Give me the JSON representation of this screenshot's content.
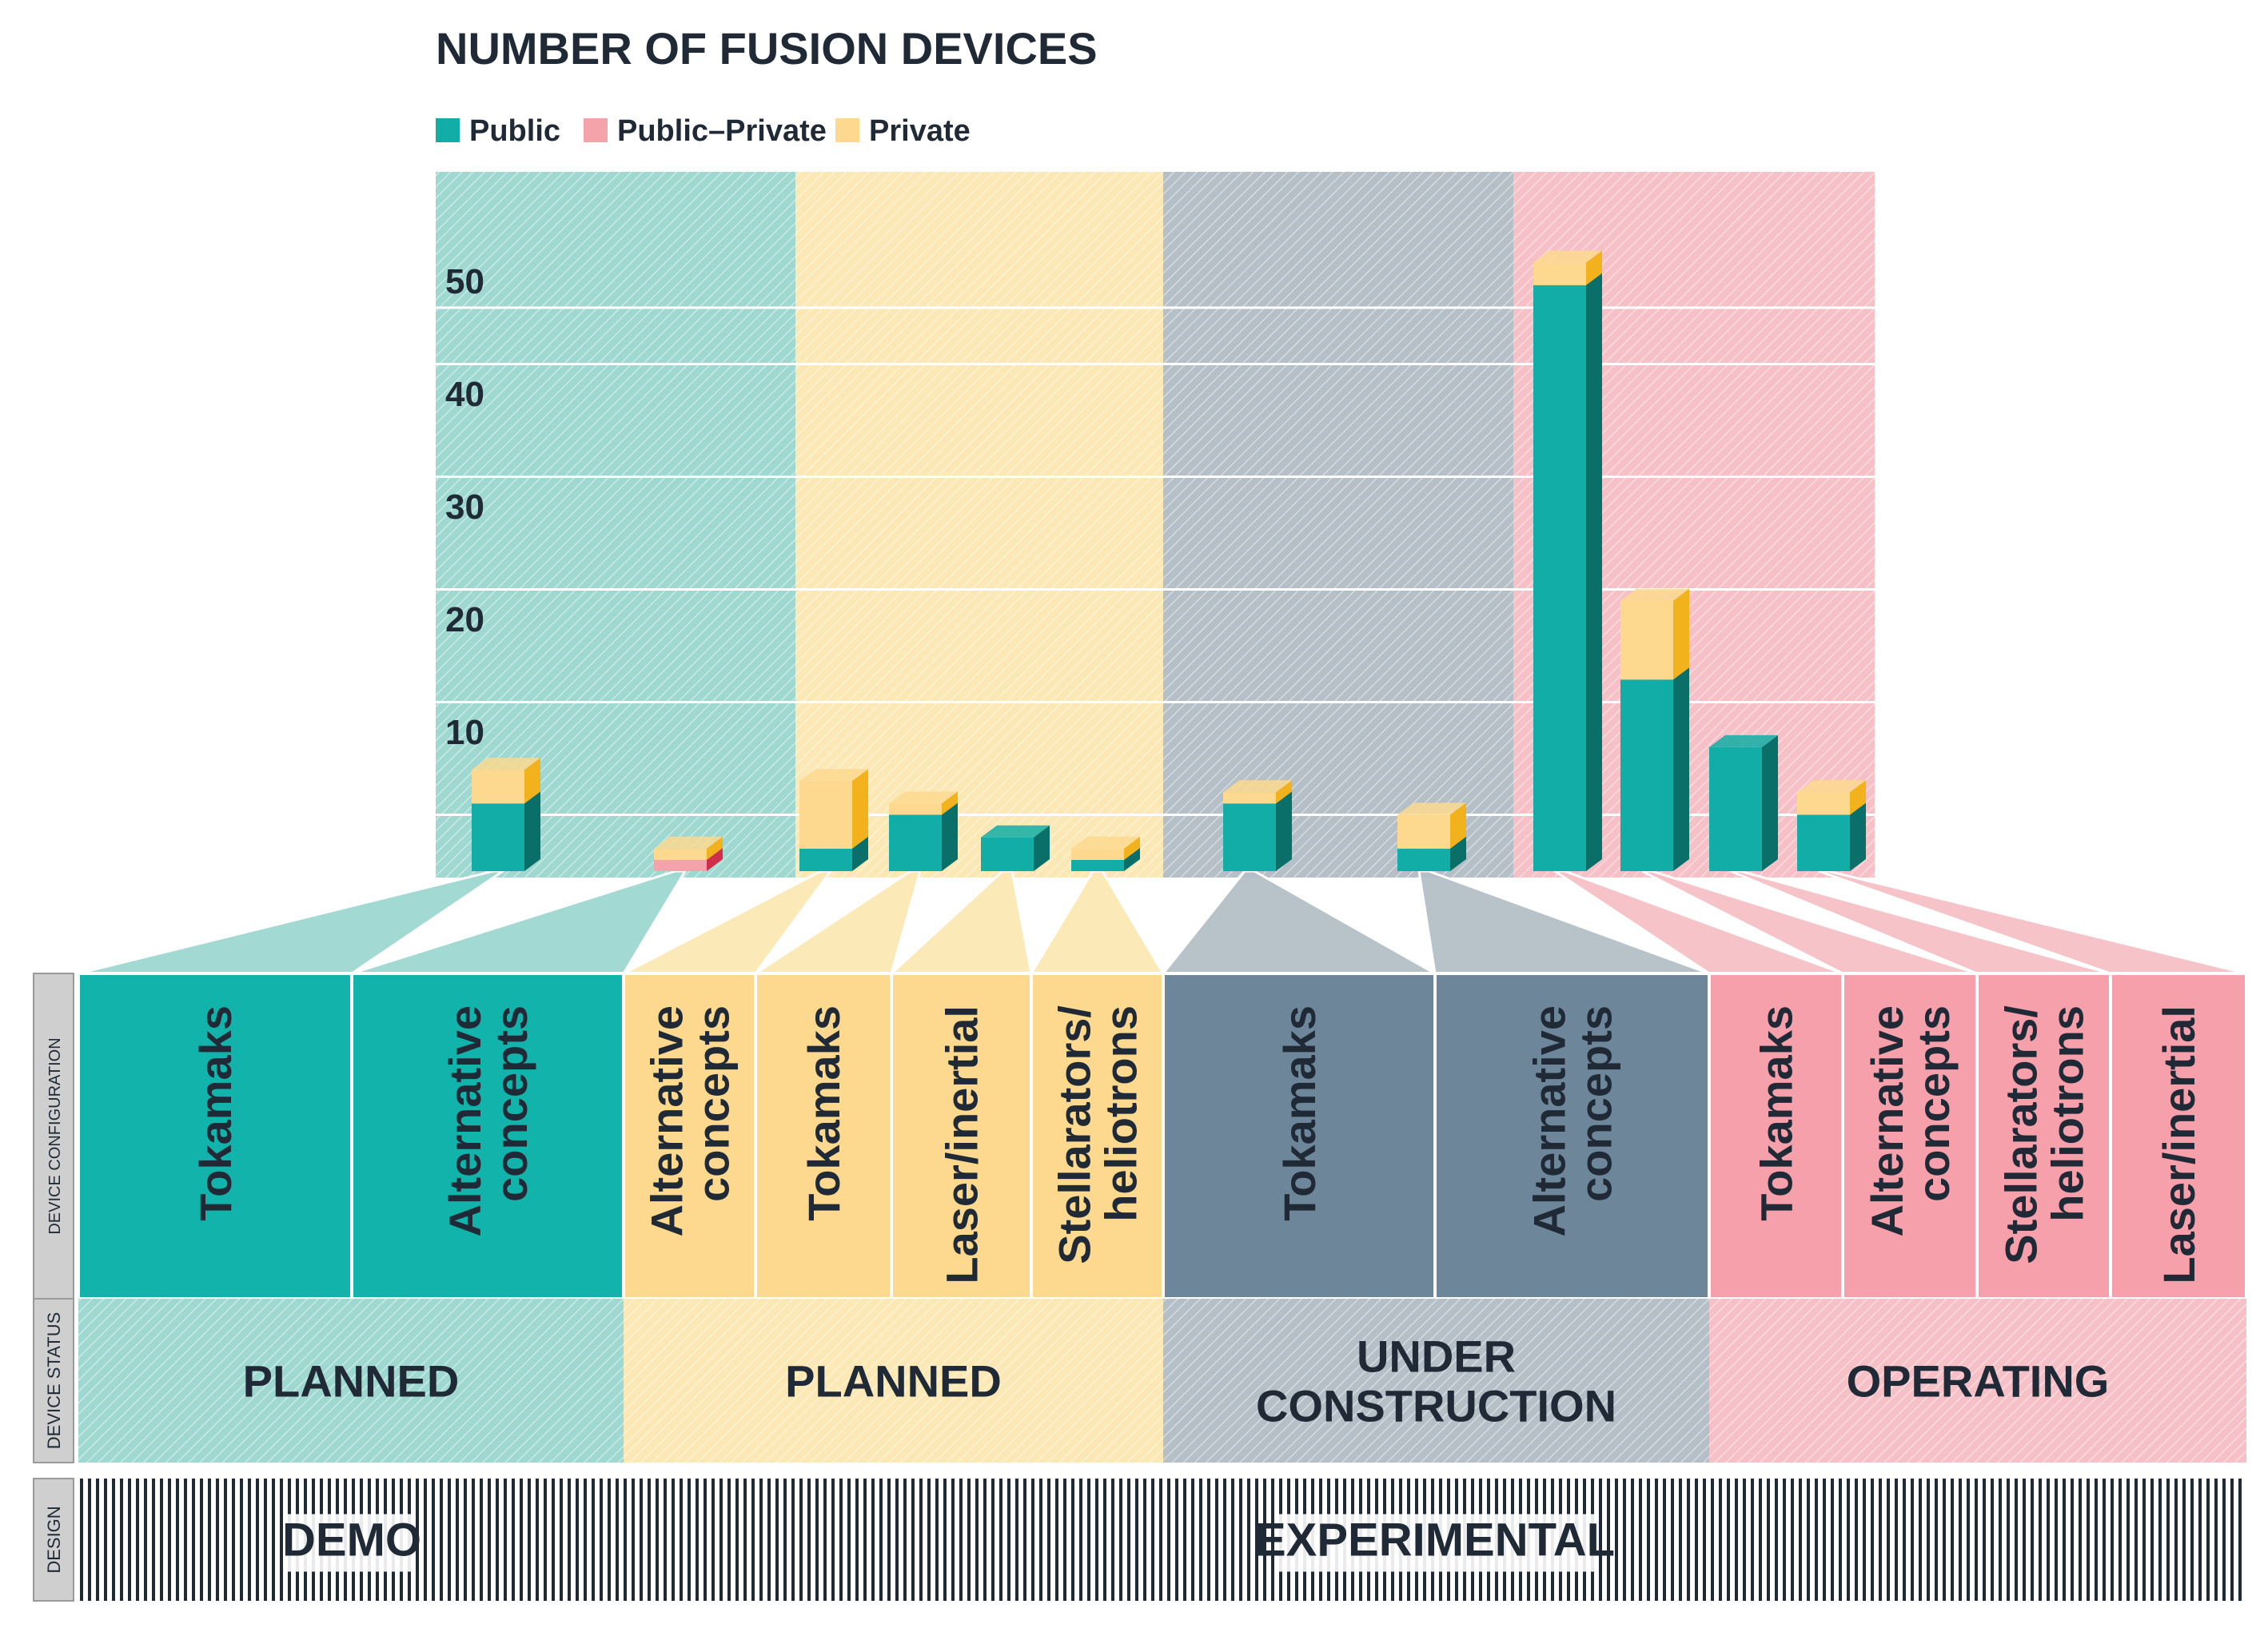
{
  "colors": {
    "public": "#12ada6",
    "public_dark": "#0a6f68",
    "public_private": "#f4a3ab",
    "public_private_dark": "#cf2f4b",
    "private": "#fcd98e",
    "private_dark": "#f2b21e",
    "group_teal": "#9fd8d1",
    "group_yellow": "#fbe8b5",
    "group_slate": "#b5bfc7",
    "group_pink": "#f6c0c7",
    "config_teal": "#12b3ab",
    "config_yellow": "#fcd98e",
    "config_slate": "#6e8699",
    "config_pink": "#f5a0aa",
    "row_label_bg": "#cfcfcf",
    "text_dark": "#1f2a36"
  },
  "row_labels": {
    "config": "DEVICE CONFIGURATION",
    "status": "DEVICE STATUS",
    "design": "DESIGN"
  },
  "design": {
    "demo": "DEMO",
    "experimental": "EXPERIMENTAL"
  },
  "status_groups": [
    {
      "label_lines": [
        "PLANNED"
      ],
      "theme": "teal",
      "configs": [
        "Tokamaks",
        "Alternative concepts"
      ]
    },
    {
      "label_lines": [
        "PLANNED"
      ],
      "theme": "yellow",
      "configs": [
        "Alternative concepts",
        "Tokamaks",
        "Laser/inertial",
        "Stellarators/ heliotrons"
      ]
    },
    {
      "label_lines": [
        "UNDER",
        "CONSTRUCTION"
      ],
      "theme": "slate",
      "configs": [
        "Tokamaks",
        "Alternative concepts"
      ]
    },
    {
      "label_lines": [
        "OPERATING"
      ],
      "theme": "pink",
      "configs": [
        "Tokamaks",
        "Alternative concepts",
        "Stellarators/ heliotrons",
        "Laser/inertial"
      ]
    }
  ],
  "config_labels": [
    [
      "Tokamaks"
    ],
    [
      "Alternative",
      "concepts"
    ],
    [
      "Alternative",
      "concepts"
    ],
    [
      "Tokamaks"
    ],
    [
      "Laser/inertial"
    ],
    [
      "Stellarators/",
      "heliotrons"
    ],
    [
      "Tokamaks"
    ],
    [
      "Alternative",
      "concepts"
    ],
    [
      "Tokamaks"
    ],
    [
      "Alternative",
      "concepts"
    ],
    [
      "Stellarators/",
      "heliotrons"
    ],
    [
      "Laser/inertial"
    ]
  ],
  "chart_data": {
    "type": "bar",
    "stacked": true,
    "title": "NUMBER OF FUSION DEVICES",
    "xlabel": "",
    "ylabel": "",
    "ylim": [
      0,
      55
    ],
    "yticks": [
      10,
      20,
      30,
      40,
      50
    ],
    "grid": true,
    "legend": [
      "Public",
      "Public–Private",
      "Private"
    ],
    "legend_position": "top-left",
    "categories": [
      "Demo planned – Tokamaks",
      "Demo planned – Alternative concepts",
      "Experimental planned – Alternative concepts",
      "Experimental planned – Tokamaks",
      "Experimental planned – Laser/inertial",
      "Experimental planned – Stellarators/heliotrons",
      "Under construction – Tokamaks",
      "Under construction – Alternative concepts",
      "Operating – Tokamaks",
      "Operating – Alternative concepts",
      "Operating – Stellarators/heliotrons",
      "Operating – Laser/inertial"
    ],
    "series": [
      {
        "name": "Public",
        "values": [
          6,
          0,
          2,
          5,
          3,
          1,
          6,
          2,
          52,
          17,
          11,
          5
        ]
      },
      {
        "name": "Public–Private",
        "values": [
          0,
          1,
          0,
          0,
          0,
          0,
          0,
          0,
          0,
          0,
          0,
          0
        ]
      },
      {
        "name": "Private",
        "values": [
          3,
          1,
          6,
          1,
          0,
          1,
          1,
          3,
          2,
          7,
          0,
          2
        ]
      }
    ]
  }
}
